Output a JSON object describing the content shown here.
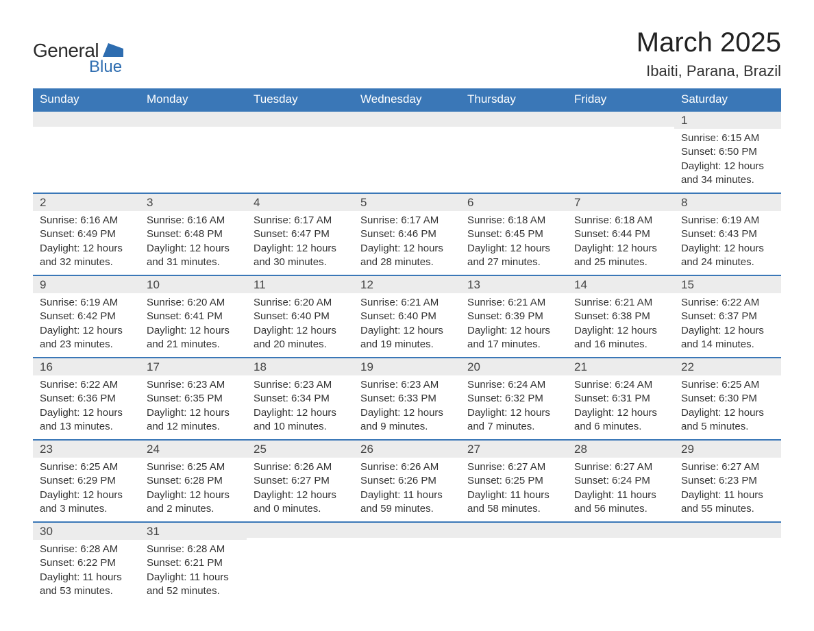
{
  "logo": {
    "text1": "General",
    "text2": "Blue",
    "shape_color": "#2e6db0"
  },
  "title": "March 2025",
  "location": "Ibaiti, Parana, Brazil",
  "colors": {
    "header_bg": "#3a77b7",
    "header_fg": "#ffffff",
    "daynum_bg": "#ececec",
    "border": "#3a77b7",
    "title_color": "#222222",
    "body_text": "#333333"
  },
  "typography": {
    "title_fontsize": 40,
    "location_fontsize": 22,
    "th_fontsize": 17,
    "daynum_fontsize": 17,
    "body_fontsize": 15
  },
  "day_headers": [
    "Sunday",
    "Monday",
    "Tuesday",
    "Wednesday",
    "Thursday",
    "Friday",
    "Saturday"
  ],
  "weeks": [
    [
      {
        "n": "",
        "sr": "",
        "ss": "",
        "dl": ""
      },
      {
        "n": "",
        "sr": "",
        "ss": "",
        "dl": ""
      },
      {
        "n": "",
        "sr": "",
        "ss": "",
        "dl": ""
      },
      {
        "n": "",
        "sr": "",
        "ss": "",
        "dl": ""
      },
      {
        "n": "",
        "sr": "",
        "ss": "",
        "dl": ""
      },
      {
        "n": "",
        "sr": "",
        "ss": "",
        "dl": ""
      },
      {
        "n": "1",
        "sr": "Sunrise: 6:15 AM",
        "ss": "Sunset: 6:50 PM",
        "dl": "Daylight: 12 hours and 34 minutes."
      }
    ],
    [
      {
        "n": "2",
        "sr": "Sunrise: 6:16 AM",
        "ss": "Sunset: 6:49 PM",
        "dl": "Daylight: 12 hours and 32 minutes."
      },
      {
        "n": "3",
        "sr": "Sunrise: 6:16 AM",
        "ss": "Sunset: 6:48 PM",
        "dl": "Daylight: 12 hours and 31 minutes."
      },
      {
        "n": "4",
        "sr": "Sunrise: 6:17 AM",
        "ss": "Sunset: 6:47 PM",
        "dl": "Daylight: 12 hours and 30 minutes."
      },
      {
        "n": "5",
        "sr": "Sunrise: 6:17 AM",
        "ss": "Sunset: 6:46 PM",
        "dl": "Daylight: 12 hours and 28 minutes."
      },
      {
        "n": "6",
        "sr": "Sunrise: 6:18 AM",
        "ss": "Sunset: 6:45 PM",
        "dl": "Daylight: 12 hours and 27 minutes."
      },
      {
        "n": "7",
        "sr": "Sunrise: 6:18 AM",
        "ss": "Sunset: 6:44 PM",
        "dl": "Daylight: 12 hours and 25 minutes."
      },
      {
        "n": "8",
        "sr": "Sunrise: 6:19 AM",
        "ss": "Sunset: 6:43 PM",
        "dl": "Daylight: 12 hours and 24 minutes."
      }
    ],
    [
      {
        "n": "9",
        "sr": "Sunrise: 6:19 AM",
        "ss": "Sunset: 6:42 PM",
        "dl": "Daylight: 12 hours and 23 minutes."
      },
      {
        "n": "10",
        "sr": "Sunrise: 6:20 AM",
        "ss": "Sunset: 6:41 PM",
        "dl": "Daylight: 12 hours and 21 minutes."
      },
      {
        "n": "11",
        "sr": "Sunrise: 6:20 AM",
        "ss": "Sunset: 6:40 PM",
        "dl": "Daylight: 12 hours and 20 minutes."
      },
      {
        "n": "12",
        "sr": "Sunrise: 6:21 AM",
        "ss": "Sunset: 6:40 PM",
        "dl": "Daylight: 12 hours and 19 minutes."
      },
      {
        "n": "13",
        "sr": "Sunrise: 6:21 AM",
        "ss": "Sunset: 6:39 PM",
        "dl": "Daylight: 12 hours and 17 minutes."
      },
      {
        "n": "14",
        "sr": "Sunrise: 6:21 AM",
        "ss": "Sunset: 6:38 PM",
        "dl": "Daylight: 12 hours and 16 minutes."
      },
      {
        "n": "15",
        "sr": "Sunrise: 6:22 AM",
        "ss": "Sunset: 6:37 PM",
        "dl": "Daylight: 12 hours and 14 minutes."
      }
    ],
    [
      {
        "n": "16",
        "sr": "Sunrise: 6:22 AM",
        "ss": "Sunset: 6:36 PM",
        "dl": "Daylight: 12 hours and 13 minutes."
      },
      {
        "n": "17",
        "sr": "Sunrise: 6:23 AM",
        "ss": "Sunset: 6:35 PM",
        "dl": "Daylight: 12 hours and 12 minutes."
      },
      {
        "n": "18",
        "sr": "Sunrise: 6:23 AM",
        "ss": "Sunset: 6:34 PM",
        "dl": "Daylight: 12 hours and 10 minutes."
      },
      {
        "n": "19",
        "sr": "Sunrise: 6:23 AM",
        "ss": "Sunset: 6:33 PM",
        "dl": "Daylight: 12 hours and 9 minutes."
      },
      {
        "n": "20",
        "sr": "Sunrise: 6:24 AM",
        "ss": "Sunset: 6:32 PM",
        "dl": "Daylight: 12 hours and 7 minutes."
      },
      {
        "n": "21",
        "sr": "Sunrise: 6:24 AM",
        "ss": "Sunset: 6:31 PM",
        "dl": "Daylight: 12 hours and 6 minutes."
      },
      {
        "n": "22",
        "sr": "Sunrise: 6:25 AM",
        "ss": "Sunset: 6:30 PM",
        "dl": "Daylight: 12 hours and 5 minutes."
      }
    ],
    [
      {
        "n": "23",
        "sr": "Sunrise: 6:25 AM",
        "ss": "Sunset: 6:29 PM",
        "dl": "Daylight: 12 hours and 3 minutes."
      },
      {
        "n": "24",
        "sr": "Sunrise: 6:25 AM",
        "ss": "Sunset: 6:28 PM",
        "dl": "Daylight: 12 hours and 2 minutes."
      },
      {
        "n": "25",
        "sr": "Sunrise: 6:26 AM",
        "ss": "Sunset: 6:27 PM",
        "dl": "Daylight: 12 hours and 0 minutes."
      },
      {
        "n": "26",
        "sr": "Sunrise: 6:26 AM",
        "ss": "Sunset: 6:26 PM",
        "dl": "Daylight: 11 hours and 59 minutes."
      },
      {
        "n": "27",
        "sr": "Sunrise: 6:27 AM",
        "ss": "Sunset: 6:25 PM",
        "dl": "Daylight: 11 hours and 58 minutes."
      },
      {
        "n": "28",
        "sr": "Sunrise: 6:27 AM",
        "ss": "Sunset: 6:24 PM",
        "dl": "Daylight: 11 hours and 56 minutes."
      },
      {
        "n": "29",
        "sr": "Sunrise: 6:27 AM",
        "ss": "Sunset: 6:23 PM",
        "dl": "Daylight: 11 hours and 55 minutes."
      }
    ],
    [
      {
        "n": "30",
        "sr": "Sunrise: 6:28 AM",
        "ss": "Sunset: 6:22 PM",
        "dl": "Daylight: 11 hours and 53 minutes."
      },
      {
        "n": "31",
        "sr": "Sunrise: 6:28 AM",
        "ss": "Sunset: 6:21 PM",
        "dl": "Daylight: 11 hours and 52 minutes."
      },
      {
        "n": "",
        "sr": "",
        "ss": "",
        "dl": ""
      },
      {
        "n": "",
        "sr": "",
        "ss": "",
        "dl": ""
      },
      {
        "n": "",
        "sr": "",
        "ss": "",
        "dl": ""
      },
      {
        "n": "",
        "sr": "",
        "ss": "",
        "dl": ""
      },
      {
        "n": "",
        "sr": "",
        "ss": "",
        "dl": ""
      }
    ]
  ]
}
